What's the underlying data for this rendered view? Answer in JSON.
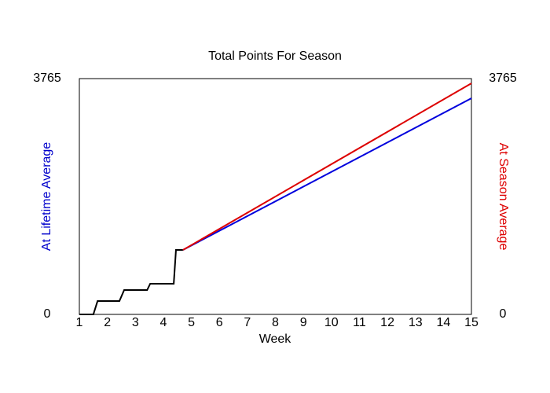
{
  "chart_data": {
    "type": "line",
    "title": "Total Points For Season",
    "xlabel": "Week",
    "ylabel": "At Lifetime Average",
    "ylabel_color": "#0000cc",
    "y2label": "At Season Average",
    "y2label_color": "#dd0000",
    "xlim": [
      1,
      15
    ],
    "xticks": [
      1,
      2,
      3,
      4,
      5,
      6,
      7,
      8,
      9,
      10,
      11,
      12,
      13,
      14,
      15
    ],
    "ylim": [
      0,
      3765
    ],
    "yticks": [
      0,
      3765
    ],
    "y2lim": [
      0,
      3765
    ],
    "y2ticks": [
      0,
      3765
    ],
    "grid": false,
    "series": [
      {
        "color": "#000000",
        "x": [
          1,
          1.5,
          1.65,
          2.43,
          2.6,
          3.42,
          3.53,
          4.37,
          4.45,
          4.7
        ],
        "values": [
          0,
          0,
          213,
          213,
          389,
          389,
          490,
          490,
          1029,
          1029
        ]
      },
      {
        "color": "#0000dd",
        "x": [
          4.7,
          15
        ],
        "values": [
          1029,
          3451
        ]
      },
      {
        "color": "#dd0000",
        "axis": "y2",
        "x": [
          4.7,
          15
        ],
        "values": [
          1029,
          3690
        ]
      }
    ]
  }
}
